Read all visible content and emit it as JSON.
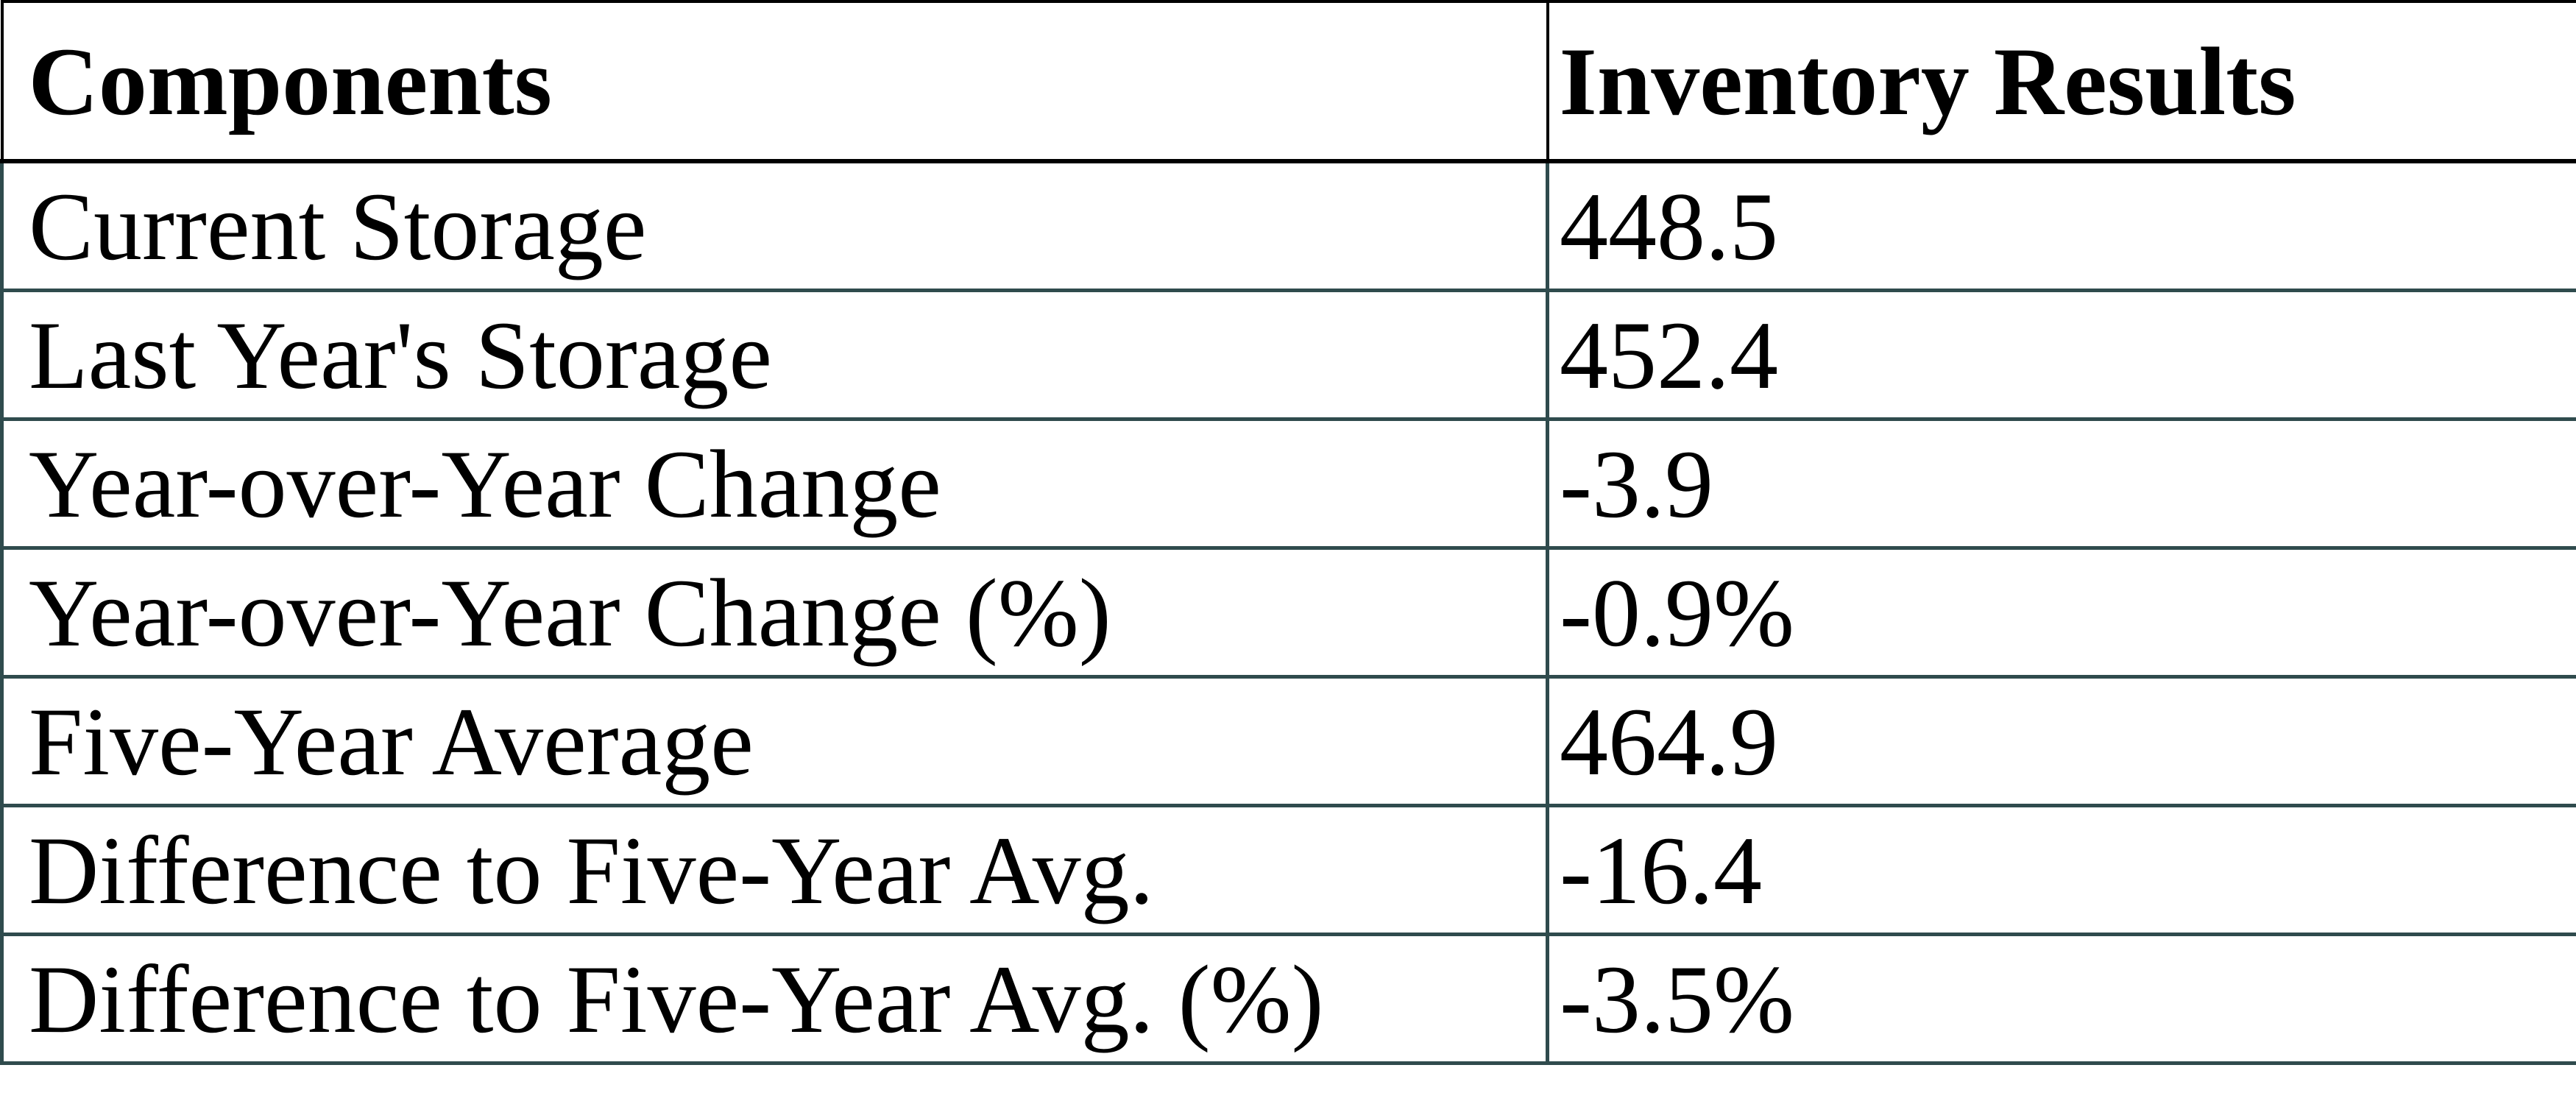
{
  "table": {
    "columns": {
      "components": "Components",
      "results": "Inventory Results"
    },
    "rows": [
      {
        "label": "Current Storage",
        "value": "448.5"
      },
      {
        "label": "Last Year's Storage",
        "value": "452.4"
      },
      {
        "label": "Year-over-Year Change",
        "value": "-3.9"
      },
      {
        "label": "Year-over-Year Change (%)",
        "value": "-0.9%"
      },
      {
        "label": "Five-Year Average",
        "value": "464.9"
      },
      {
        "label": "Difference to Five-Year Avg.",
        "value": "-16.4"
      },
      {
        "label": "Difference to Five-Year Avg. (%)",
        "value": "-3.5%"
      }
    ],
    "colors": {
      "header_border": "#000000",
      "body_border": "#2F4B4D",
      "text": "#000000",
      "background": "#FFFFFF"
    }
  }
}
